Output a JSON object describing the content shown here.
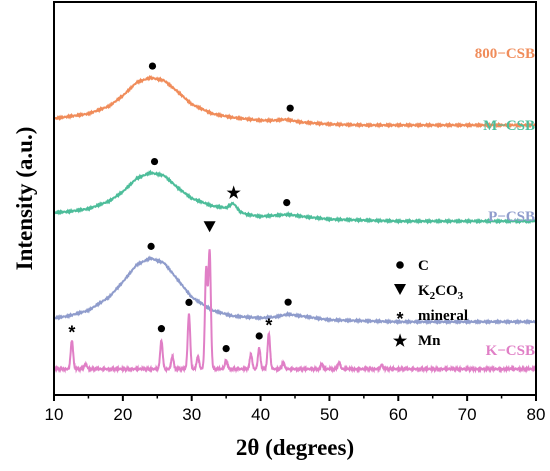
{
  "chart_data": {
    "type": "line",
    "xlabel": "2θ (degrees)",
    "ylabel": "Intensity (a.u.)",
    "xlim": [
      10,
      80
    ],
    "x_ticks": [
      10,
      20,
      30,
      40,
      50,
      60,
      70,
      80
    ],
    "grid": false,
    "colors": {
      "800-CSB": "#F08C5A",
      "M-CSB": "#4DBD9A",
      "P-CSB": "#8F9CCC",
      "K-CSB": "#E07FC6"
    },
    "series": [
      {
        "name": "800−CSB",
        "x": [
          10,
          12,
          15,
          18,
          20,
          22,
          24,
          26,
          28,
          30,
          33,
          36,
          40,
          42,
          43.5,
          44.5,
          46,
          50,
          55,
          60,
          70,
          80
        ],
        "y": [
          0.9,
          0.92,
          0.95,
          1.03,
          1.14,
          1.28,
          1.33,
          1.3,
          1.18,
          1.05,
          0.95,
          0.91,
          0.88,
          0.88,
          0.89,
          0.88,
          0.86,
          0.84,
          0.83,
          0.83,
          0.83,
          0.83
        ]
      },
      {
        "name": "M−CSB",
        "x": [
          10,
          12,
          15,
          18,
          20,
          22,
          24,
          26,
          28,
          30,
          33,
          35,
          36,
          36.5,
          37,
          38,
          40,
          42,
          44,
          46,
          50,
          55,
          60,
          70,
          80
        ],
        "y": [
          1.12,
          1.13,
          1.16,
          1.24,
          1.34,
          1.48,
          1.54,
          1.51,
          1.38,
          1.27,
          1.19,
          1.17,
          1.22,
          1.18,
          1.13,
          1.1,
          1.08,
          1.09,
          1.1,
          1.08,
          1.05,
          1.04,
          1.03,
          1.03,
          1.03
        ]
      },
      {
        "name": "P−CSB",
        "x": [
          10,
          12,
          15,
          18,
          20,
          22,
          24,
          26,
          28,
          30,
          33,
          36,
          40,
          42,
          44,
          46,
          50,
          55,
          60,
          70,
          80
        ],
        "y": [
          1.0,
          1.02,
          1.08,
          1.22,
          1.38,
          1.56,
          1.63,
          1.58,
          1.4,
          1.22,
          1.08,
          1.02,
          1.0,
          1.01,
          1.04,
          1.02,
          0.98,
          0.97,
          0.96,
          0.96,
          0.96
        ]
      },
      {
        "name": "K−CSB",
        "peaks": [
          {
            "x": 12.6,
            "h": 0.27
          },
          {
            "x": 14.6,
            "h": 0.05
          },
          {
            "x": 25.6,
            "h": 0.27
          },
          {
            "x": 27.2,
            "h": 0.12
          },
          {
            "x": 29.6,
            "h": 0.52
          },
          {
            "x": 30.9,
            "h": 0.12
          },
          {
            "x": 32.1,
            "h": 0.95
          },
          {
            "x": 32.6,
            "h": 1.12
          },
          {
            "x": 35.0,
            "h": 0.08
          },
          {
            "x": 38.6,
            "h": 0.14
          },
          {
            "x": 39.8,
            "h": 0.2
          },
          {
            "x": 41.2,
            "h": 0.34
          },
          {
            "x": 43.3,
            "h": 0.06
          },
          {
            "x": 48.9,
            "h": 0.05
          },
          {
            "x": 51.4,
            "h": 0.06
          },
          {
            "x": 57.6,
            "h": 0.04
          }
        ]
      }
    ],
    "series_labels": [
      "800−CSB",
      "M−CSB",
      "P−CSB",
      "K−CSB"
    ],
    "legend": {
      "placement": "right",
      "items": [
        {
          "symbol": "●",
          "label": "C"
        },
        {
          "symbol": "▼",
          "label": "K",
          "sub": "2",
          "label_tail": "CO",
          "sub2": "3"
        },
        {
          "symbol": "*",
          "label": "mineral"
        },
        {
          "symbol": "★",
          "label": "Mn"
        }
      ]
    },
    "annotations": [
      {
        "series": 0,
        "symbol": "●",
        "x": 24.3
      },
      {
        "series": 0,
        "symbol": "●",
        "x": 44.3
      },
      {
        "series": 1,
        "symbol": "●",
        "x": 24.6
      },
      {
        "series": 1,
        "symbol": "★",
        "x": 36.1
      },
      {
        "series": 1,
        "symbol": "●",
        "x": 43.8
      },
      {
        "series": 2,
        "symbol": "●",
        "x": 24.1
      },
      {
        "series": 2,
        "symbol": "●",
        "x": 44.0
      },
      {
        "series": 3,
        "symbol": "*",
        "x": 12.6
      },
      {
        "series": 3,
        "symbol": "●",
        "x": 25.6
      },
      {
        "series": 3,
        "symbol": "●",
        "x": 29.6
      },
      {
        "series": 3,
        "symbol": "▼",
        "x": 32.6
      },
      {
        "series": 3,
        "symbol": "●",
        "x": 35.0
      },
      {
        "series": 3,
        "symbol": "●",
        "x": 39.8
      },
      {
        "series": 3,
        "symbol": "*",
        "x": 41.2
      }
    ]
  }
}
